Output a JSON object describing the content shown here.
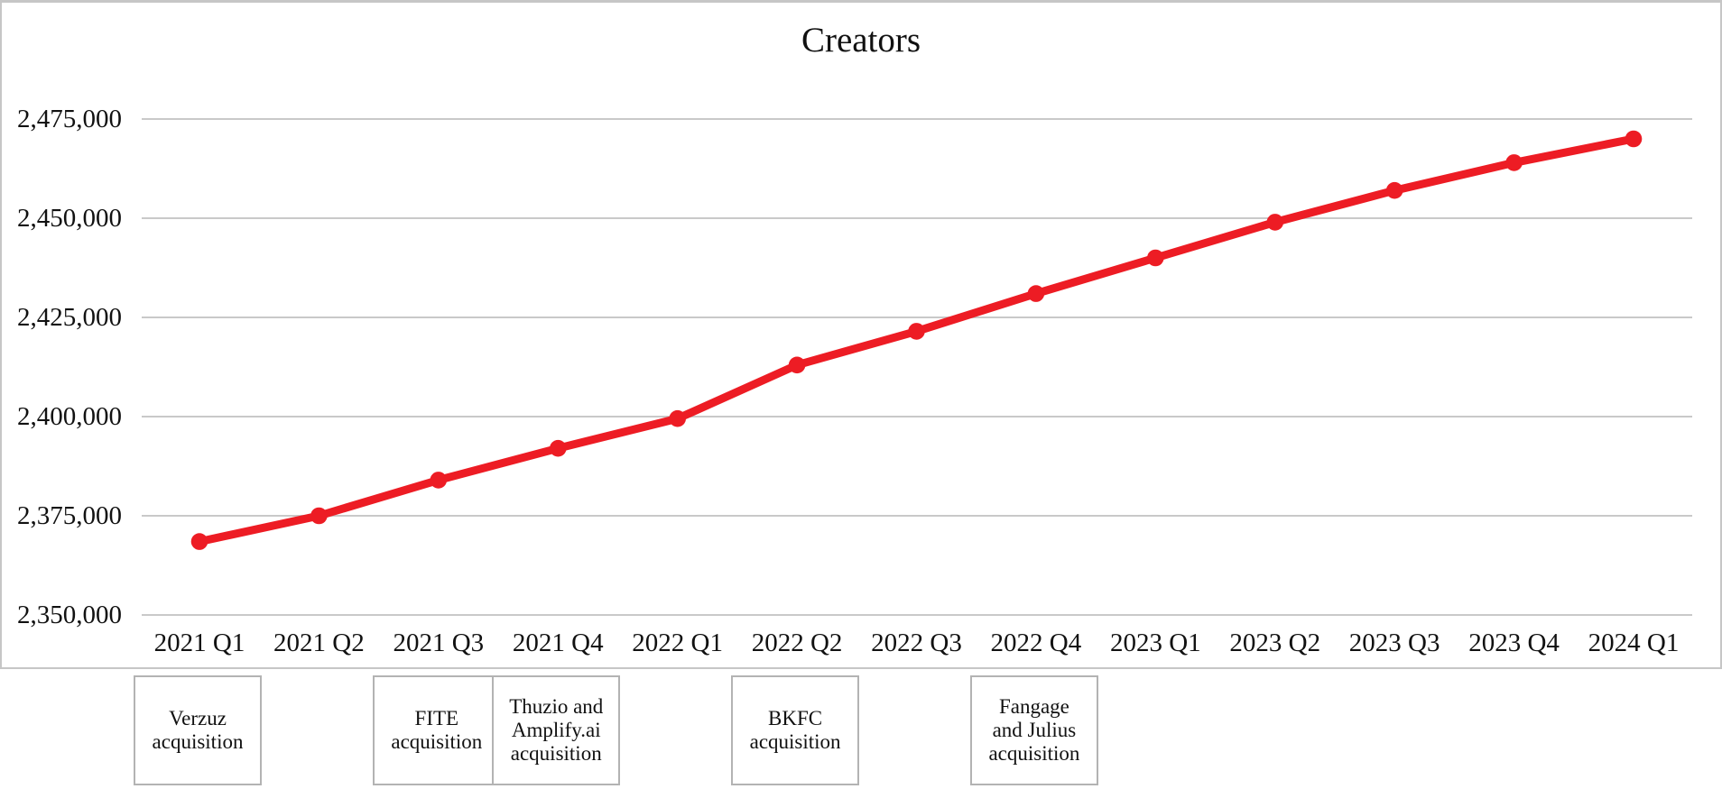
{
  "chart_data": {
    "type": "line",
    "title": "Creators",
    "categories": [
      "2021 Q1",
      "2021 Q2",
      "2021 Q3",
      "2021 Q4",
      "2022 Q1",
      "2022 Q2",
      "2022 Q3",
      "2022 Q4",
      "2023 Q1",
      "2023 Q2",
      "2023 Q3",
      "2023 Q4",
      "2024 Q1"
    ],
    "series": [
      {
        "name": "Creators",
        "values": [
          2368500,
          2375000,
          2384000,
          2392000,
          2399500,
          2413000,
          2421500,
          2431000,
          2440000,
          2449000,
          2457000,
          2464000,
          2470000
        ]
      }
    ],
    "xlabel": "",
    "ylabel": "",
    "ylim": [
      2350000,
      2475000
    ],
    "ytick_step": 25000,
    "ytick_labels": [
      "2,350,000",
      "2,375,000",
      "2,400,000",
      "2,425,000",
      "2,450,000",
      "2,475,000"
    ],
    "grid": "horizontal",
    "legend": "none",
    "marker": "circle",
    "annotations": [
      {
        "label": "Verzuz\nacquisition",
        "anchor_category": "2021 Q1",
        "anchor_index": 0
      },
      {
        "label": "FITE\nacquisition",
        "anchor_category": "2021 Q3",
        "anchor_index": 2
      },
      {
        "label": "Thuzio and\nAmplify.ai\nacquisition",
        "anchor_category": "2021 Q4",
        "anchor_index": 3
      },
      {
        "label": "BKFC\nacquisition",
        "anchor_category": "2022 Q2",
        "anchor_index": 5
      },
      {
        "label": "Fangage\nand Julius\nacquisition",
        "anchor_category": "2022 Q4",
        "anchor_index": 7
      }
    ],
    "colors": {
      "line": "#ed1c24",
      "grid": "#c9c9c9",
      "frame_border": "#c6c6c6",
      "box_border": "#b3b3b3",
      "text": "#111111"
    }
  }
}
